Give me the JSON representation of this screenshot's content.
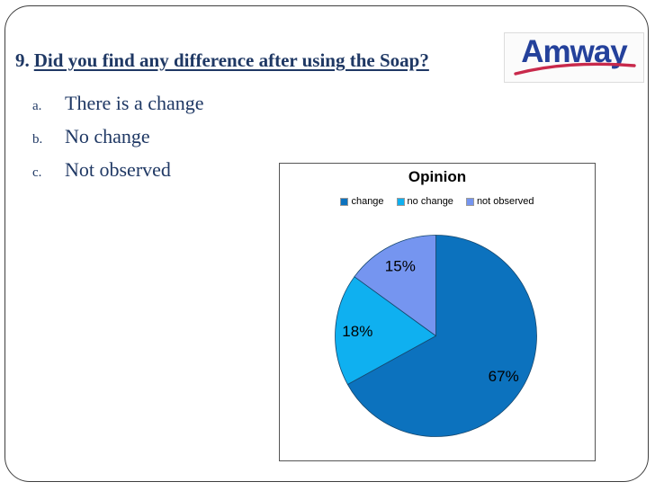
{
  "slide": {
    "title_number": "9.",
    "title_text": "Did you find any difference after using the Soap?",
    "options": [
      {
        "label": "a.",
        "text": "There is a change"
      },
      {
        "label": "b.",
        "text": "No change"
      },
      {
        "label": "c.",
        "text": "Not observed"
      }
    ]
  },
  "logo": {
    "text": "Amway",
    "text_color": "#24419B",
    "swoosh_icon": "red-swoosh",
    "swoosh_color": "#C8294B"
  },
  "chart_data": {
    "type": "pie",
    "title": "Opinion",
    "labels": [
      "change",
      "no change",
      "not observed"
    ],
    "values": [
      67,
      18,
      15
    ],
    "value_labels": [
      "67%",
      "18%",
      "15%"
    ],
    "colors": [
      "#0C72BE",
      "#0FB0F0",
      "#7595F0"
    ],
    "slice_border_color": "#16486F",
    "legend_position": "top",
    "start_angle_deg": 0,
    "direction": "clockwise"
  },
  "colors": {
    "text_navy": "#1F3864",
    "frame_border": "#3F3F3F",
    "background": "#FFFFFF"
  }
}
